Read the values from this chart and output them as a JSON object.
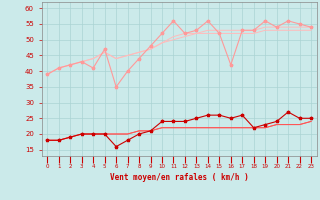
{
  "xlabel": "Vent moyen/en rafales ( km/h )",
  "x": [
    0,
    1,
    2,
    3,
    4,
    5,
    6,
    7,
    8,
    9,
    10,
    11,
    12,
    13,
    14,
    15,
    16,
    17,
    18,
    19,
    20,
    21,
    22,
    23
  ],
  "upper_series": {
    "line1": [
      39,
      41,
      42,
      43,
      41,
      47,
      35,
      40,
      44,
      48,
      52,
      56,
      52,
      53,
      56,
      52,
      42,
      53,
      53,
      56,
      54,
      56,
      55,
      54
    ],
    "line2": [
      39,
      41,
      42,
      43,
      44,
      46,
      44,
      45,
      46,
      47,
      49,
      51,
      52,
      52,
      53,
      53,
      53,
      53,
      53,
      54,
      54,
      54,
      54,
      54
    ],
    "line3": [
      39,
      41,
      42,
      43,
      44,
      46,
      44,
      45,
      46,
      47,
      49,
      50,
      51,
      52,
      52,
      52,
      52,
      52,
      52,
      53,
      53,
      53,
      53,
      53
    ]
  },
  "lower_series": {
    "line1": [
      18,
      18,
      19,
      20,
      20,
      20,
      16,
      18,
      20,
      21,
      24,
      24,
      24,
      25,
      26,
      26,
      25,
      26,
      22,
      23,
      24,
      27,
      25,
      25
    ],
    "line2": [
      18,
      18,
      19,
      20,
      20,
      20,
      20,
      20,
      21,
      21,
      22,
      22,
      22,
      22,
      22,
      22,
      22,
      22,
      22,
      22,
      23,
      23,
      23,
      24
    ],
    "line3": [
      18,
      18,
      19,
      20,
      20,
      20,
      20,
      20,
      21,
      21,
      22,
      22,
      22,
      22,
      22,
      22,
      22,
      22,
      22,
      22,
      23,
      23,
      23,
      24
    ]
  },
  "bg_color": "#cbeaea",
  "grid_color": "#aad4d4",
  "upper_marker_color": "#ff9999",
  "upper_line_color": "#ffbbbb",
  "lower_marker_color": "#cc0000",
  "lower_line_color": "#ff5555",
  "ylim": [
    13,
    62
  ],
  "yticks": [
    15,
    20,
    25,
    30,
    35,
    40,
    45,
    50,
    55,
    60
  ],
  "tick_color": "#cc0000",
  "label_color": "#cc0000"
}
